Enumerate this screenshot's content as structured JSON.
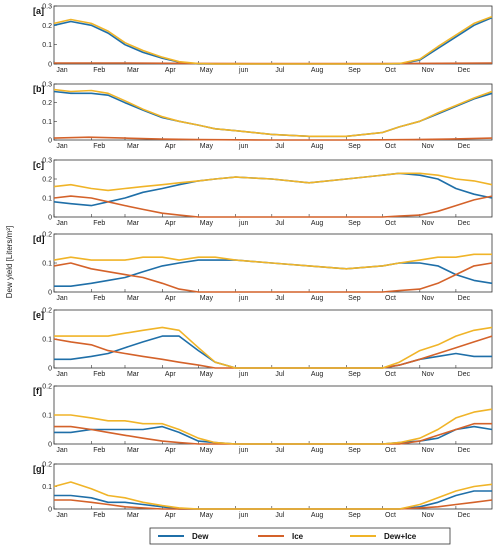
{
  "figure": {
    "ylabel": "Dew yield [Liters/m²]",
    "months": [
      "Jan",
      "Feb",
      "Mar",
      "Apr",
      "May",
      "jun",
      "Jul",
      "Aug",
      "Sep",
      "Oct",
      "Nov",
      "Dec"
    ]
  },
  "legend": {
    "items": [
      {
        "label": "Dew",
        "color": "#1f6fa8"
      },
      {
        "label": "Ice",
        "color": "#d4622a"
      },
      {
        "label": "Dew+Ice",
        "color": "#f0b428"
      }
    ]
  },
  "chart_data": [
    {
      "type": "line",
      "panel_label": "[a]",
      "ylim": [
        0,
        0.3
      ],
      "yticks": [
        0,
        0.1,
        0.2,
        0.3
      ],
      "series": [
        {
          "name": "Dew",
          "color": "#1f6fa8",
          "x": [
            1,
            15,
            32,
            46,
            60,
            75,
            91,
            105,
            121,
            135,
            152,
            182,
            213,
            244,
            274,
            288,
            305,
            320,
            335,
            350,
            365
          ],
          "y": [
            0.2,
            0.22,
            0.2,
            0.16,
            0.1,
            0.06,
            0.03,
            0.01,
            0,
            0,
            0,
            0,
            0,
            0,
            0,
            0,
            0.02,
            0.08,
            0.14,
            0.2,
            0.24
          ]
        },
        {
          "name": "Ice",
          "color": "#d4622a",
          "x": [
            1,
            60,
            120,
            180,
            240,
            300,
            365
          ],
          "y": [
            0.005,
            0.005,
            0.003,
            0.002,
            0.002,
            0.003,
            0.005
          ]
        },
        {
          "name": "Dew+Ice",
          "color": "#f0b428",
          "x": [
            1,
            15,
            32,
            46,
            60,
            75,
            91,
            105,
            121,
            135,
            152,
            182,
            213,
            244,
            274,
            288,
            305,
            320,
            335,
            350,
            365
          ],
          "y": [
            0.21,
            0.23,
            0.21,
            0.17,
            0.11,
            0.07,
            0.035,
            0.012,
            0.002,
            0,
            0,
            0,
            0,
            0,
            0,
            0.002,
            0.025,
            0.09,
            0.15,
            0.21,
            0.245
          ]
        }
      ]
    },
    {
      "type": "line",
      "panel_label": "[b]",
      "ylim": [
        0,
        0.3
      ],
      "yticks": [
        0,
        0.1,
        0.2,
        0.3
      ],
      "series": [
        {
          "name": "Dew",
          "color": "#1f6fa8",
          "x": [
            1,
            15,
            32,
            46,
            60,
            75,
            91,
            105,
            121,
            135,
            152,
            182,
            213,
            244,
            274,
            288,
            305,
            320,
            335,
            350,
            365
          ],
          "y": [
            0.26,
            0.25,
            0.25,
            0.24,
            0.2,
            0.16,
            0.12,
            0.1,
            0.08,
            0.06,
            0.05,
            0.03,
            0.02,
            0.02,
            0.04,
            0.07,
            0.1,
            0.14,
            0.18,
            0.22,
            0.25
          ]
        },
        {
          "name": "Ice",
          "color": "#d4622a",
          "x": [
            1,
            30,
            60,
            90,
            120,
            180,
            240,
            300,
            330,
            365
          ],
          "y": [
            0.01,
            0.015,
            0.01,
            0.005,
            0.002,
            0,
            0,
            0.002,
            0.005,
            0.01
          ]
        },
        {
          "name": "Dew+Ice",
          "color": "#f0b428",
          "x": [
            1,
            15,
            32,
            46,
            60,
            75,
            91,
            105,
            121,
            135,
            152,
            182,
            213,
            244,
            274,
            288,
            305,
            320,
            335,
            350,
            365
          ],
          "y": [
            0.27,
            0.26,
            0.265,
            0.25,
            0.21,
            0.165,
            0.125,
            0.1,
            0.08,
            0.06,
            0.05,
            0.03,
            0.02,
            0.02,
            0.04,
            0.07,
            0.1,
            0.145,
            0.185,
            0.225,
            0.26
          ]
        }
      ]
    },
    {
      "type": "line",
      "panel_label": "[c]",
      "ylim": [
        0,
        0.3
      ],
      "yticks": [
        0,
        0.1,
        0.2,
        0.3
      ],
      "series": [
        {
          "name": "Dew",
          "color": "#1f6fa8",
          "x": [
            1,
            15,
            32,
            46,
            60,
            75,
            91,
            105,
            121,
            135,
            152,
            182,
            213,
            244,
            274,
            288,
            305,
            320,
            335,
            350,
            365
          ],
          "y": [
            0.08,
            0.07,
            0.06,
            0.08,
            0.1,
            0.13,
            0.15,
            0.17,
            0.19,
            0.2,
            0.21,
            0.2,
            0.18,
            0.2,
            0.22,
            0.23,
            0.22,
            0.2,
            0.15,
            0.12,
            0.1
          ]
        },
        {
          "name": "Ice",
          "color": "#d4622a",
          "x": [
            1,
            15,
            32,
            46,
            60,
            75,
            91,
            105,
            121,
            135,
            152,
            182,
            213,
            244,
            274,
            288,
            305,
            320,
            335,
            350,
            365
          ],
          "y": [
            0.1,
            0.11,
            0.1,
            0.08,
            0.06,
            0.04,
            0.02,
            0.01,
            0,
            0,
            0,
            0,
            0,
            0,
            0,
            0.005,
            0.01,
            0.03,
            0.06,
            0.09,
            0.11
          ]
        },
        {
          "name": "Dew+Ice",
          "color": "#f0b428",
          "x": [
            1,
            15,
            32,
            46,
            60,
            75,
            91,
            105,
            121,
            135,
            152,
            182,
            213,
            244,
            274,
            288,
            305,
            320,
            335,
            350,
            365
          ],
          "y": [
            0.16,
            0.17,
            0.15,
            0.14,
            0.15,
            0.16,
            0.17,
            0.18,
            0.19,
            0.2,
            0.21,
            0.2,
            0.18,
            0.2,
            0.22,
            0.23,
            0.23,
            0.22,
            0.2,
            0.19,
            0.17
          ]
        }
      ]
    },
    {
      "type": "line",
      "panel_label": "[d]",
      "ylim": [
        0,
        0.2
      ],
      "yticks": [
        0,
        0.1,
        0.2
      ],
      "series": [
        {
          "name": "Dew",
          "color": "#1f6fa8",
          "x": [
            1,
            15,
            32,
            46,
            60,
            75,
            91,
            105,
            121,
            135,
            152,
            182,
            213,
            244,
            274,
            288,
            305,
            320,
            335,
            350,
            365
          ],
          "y": [
            0.02,
            0.02,
            0.03,
            0.04,
            0.05,
            0.07,
            0.09,
            0.1,
            0.11,
            0.11,
            0.11,
            0.1,
            0.09,
            0.08,
            0.09,
            0.1,
            0.1,
            0.09,
            0.06,
            0.04,
            0.03
          ]
        },
        {
          "name": "Ice",
          "color": "#d4622a",
          "x": [
            1,
            15,
            32,
            46,
            60,
            75,
            91,
            105,
            121,
            135,
            152,
            182,
            213,
            244,
            274,
            288,
            305,
            320,
            335,
            350,
            365
          ],
          "y": [
            0.09,
            0.1,
            0.08,
            0.07,
            0.06,
            0.05,
            0.03,
            0.01,
            0,
            0,
            0,
            0,
            0,
            0,
            0,
            0.005,
            0.01,
            0.03,
            0.06,
            0.09,
            0.1
          ]
        },
        {
          "name": "Dew+Ice",
          "color": "#f0b428",
          "x": [
            1,
            15,
            32,
            46,
            60,
            75,
            91,
            105,
            121,
            135,
            152,
            182,
            213,
            244,
            274,
            288,
            305,
            320,
            335,
            350,
            365
          ],
          "y": [
            0.11,
            0.12,
            0.11,
            0.11,
            0.11,
            0.12,
            0.12,
            0.11,
            0.12,
            0.12,
            0.11,
            0.1,
            0.09,
            0.08,
            0.09,
            0.1,
            0.11,
            0.12,
            0.12,
            0.13,
            0.13
          ]
        }
      ]
    },
    {
      "type": "line",
      "panel_label": "[e]",
      "ylim": [
        0,
        0.2
      ],
      "yticks": [
        0,
        0.1,
        0.2
      ],
      "series": [
        {
          "name": "Dew",
          "color": "#1f6fa8",
          "x": [
            1,
            15,
            32,
            46,
            60,
            75,
            91,
            105,
            121,
            135,
            152,
            182,
            213,
            244,
            274,
            288,
            305,
            320,
            335,
            350,
            365
          ],
          "y": [
            0.03,
            0.03,
            0.04,
            0.05,
            0.07,
            0.09,
            0.11,
            0.11,
            0.06,
            0.02,
            0,
            0,
            0,
            0,
            0,
            0.01,
            0.03,
            0.04,
            0.05,
            0.04,
            0.04
          ]
        },
        {
          "name": "Ice",
          "color": "#d4622a",
          "x": [
            1,
            15,
            32,
            46,
            60,
            75,
            91,
            105,
            121,
            135,
            152,
            182,
            213,
            244,
            274,
            288,
            305,
            320,
            335,
            350,
            365
          ],
          "y": [
            0.1,
            0.09,
            0.08,
            0.06,
            0.05,
            0.04,
            0.03,
            0.02,
            0.01,
            0,
            0,
            0,
            0,
            0,
            0,
            0.01,
            0.03,
            0.05,
            0.07,
            0.09,
            0.11
          ]
        },
        {
          "name": "Dew+Ice",
          "color": "#f0b428",
          "x": [
            1,
            15,
            32,
            46,
            60,
            75,
            91,
            105,
            121,
            135,
            152,
            182,
            213,
            244,
            274,
            288,
            305,
            320,
            335,
            350,
            365
          ],
          "y": [
            0.11,
            0.11,
            0.11,
            0.11,
            0.12,
            0.13,
            0.14,
            0.13,
            0.07,
            0.02,
            0,
            0,
            0,
            0,
            0,
            0.02,
            0.06,
            0.08,
            0.11,
            0.13,
            0.14
          ]
        }
      ]
    },
    {
      "type": "line",
      "panel_label": "[f]",
      "ylim": [
        0,
        0.2
      ],
      "yticks": [
        0,
        0.1,
        0.2
      ],
      "series": [
        {
          "name": "Dew",
          "color": "#1f6fa8",
          "x": [
            1,
            15,
            32,
            46,
            60,
            75,
            91,
            105,
            121,
            135,
            152,
            182,
            213,
            244,
            274,
            288,
            305,
            320,
            335,
            350,
            365
          ],
          "y": [
            0.04,
            0.04,
            0.05,
            0.05,
            0.05,
            0.05,
            0.06,
            0.04,
            0.01,
            0.005,
            0,
            0,
            0,
            0,
            0,
            0.005,
            0.01,
            0.02,
            0.05,
            0.06,
            0.05
          ]
        },
        {
          "name": "Ice",
          "color": "#d4622a",
          "x": [
            1,
            15,
            32,
            46,
            60,
            75,
            91,
            105,
            121,
            135,
            152,
            182,
            213,
            244,
            274,
            288,
            305,
            320,
            335,
            350,
            365
          ],
          "y": [
            0.06,
            0.06,
            0.05,
            0.04,
            0.03,
            0.02,
            0.01,
            0.005,
            0,
            0,
            0,
            0,
            0,
            0,
            0,
            0,
            0.01,
            0.03,
            0.05,
            0.07,
            0.07
          ]
        },
        {
          "name": "Dew+Ice",
          "color": "#f0b428",
          "x": [
            1,
            15,
            32,
            46,
            60,
            75,
            91,
            105,
            121,
            135,
            152,
            182,
            213,
            244,
            274,
            288,
            305,
            320,
            335,
            350,
            365
          ],
          "y": [
            0.1,
            0.1,
            0.09,
            0.08,
            0.08,
            0.07,
            0.07,
            0.05,
            0.02,
            0.005,
            0,
            0,
            0,
            0,
            0,
            0.005,
            0.02,
            0.05,
            0.09,
            0.11,
            0.12
          ]
        }
      ]
    },
    {
      "type": "line",
      "panel_label": "[g]",
      "ylim": [
        0,
        0.2
      ],
      "yticks": [
        0,
        0.1,
        0.2
      ],
      "series": [
        {
          "name": "Dew",
          "color": "#1f6fa8",
          "x": [
            1,
            15,
            32,
            46,
            60,
            75,
            91,
            105,
            121,
            135,
            152,
            182,
            213,
            244,
            274,
            288,
            305,
            320,
            335,
            350,
            365
          ],
          "y": [
            0.06,
            0.06,
            0.05,
            0.03,
            0.03,
            0.02,
            0.01,
            0,
            0,
            0,
            0,
            0,
            0,
            0,
            0,
            0,
            0.01,
            0.03,
            0.06,
            0.08,
            0.08
          ]
        },
        {
          "name": "Ice",
          "color": "#d4622a",
          "x": [
            1,
            15,
            32,
            46,
            60,
            75,
            91,
            105,
            121,
            135,
            152,
            182,
            213,
            244,
            274,
            288,
            305,
            320,
            335,
            350,
            365
          ],
          "y": [
            0.04,
            0.04,
            0.03,
            0.02,
            0.01,
            0.005,
            0,
            0,
            0,
            0,
            0,
            0,
            0,
            0,
            0,
            0,
            0.005,
            0.01,
            0.02,
            0.03,
            0.04
          ]
        },
        {
          "name": "Dew+Ice",
          "color": "#f0b428",
          "x": [
            1,
            15,
            32,
            46,
            60,
            75,
            91,
            105,
            121,
            135,
            152,
            182,
            213,
            244,
            274,
            288,
            305,
            320,
            335,
            350,
            365
          ],
          "y": [
            0.1,
            0.12,
            0.09,
            0.06,
            0.05,
            0.03,
            0.015,
            0.005,
            0,
            0,
            0,
            0,
            0,
            0,
            0,
            0,
            0.02,
            0.05,
            0.08,
            0.1,
            0.11
          ]
        }
      ]
    }
  ]
}
